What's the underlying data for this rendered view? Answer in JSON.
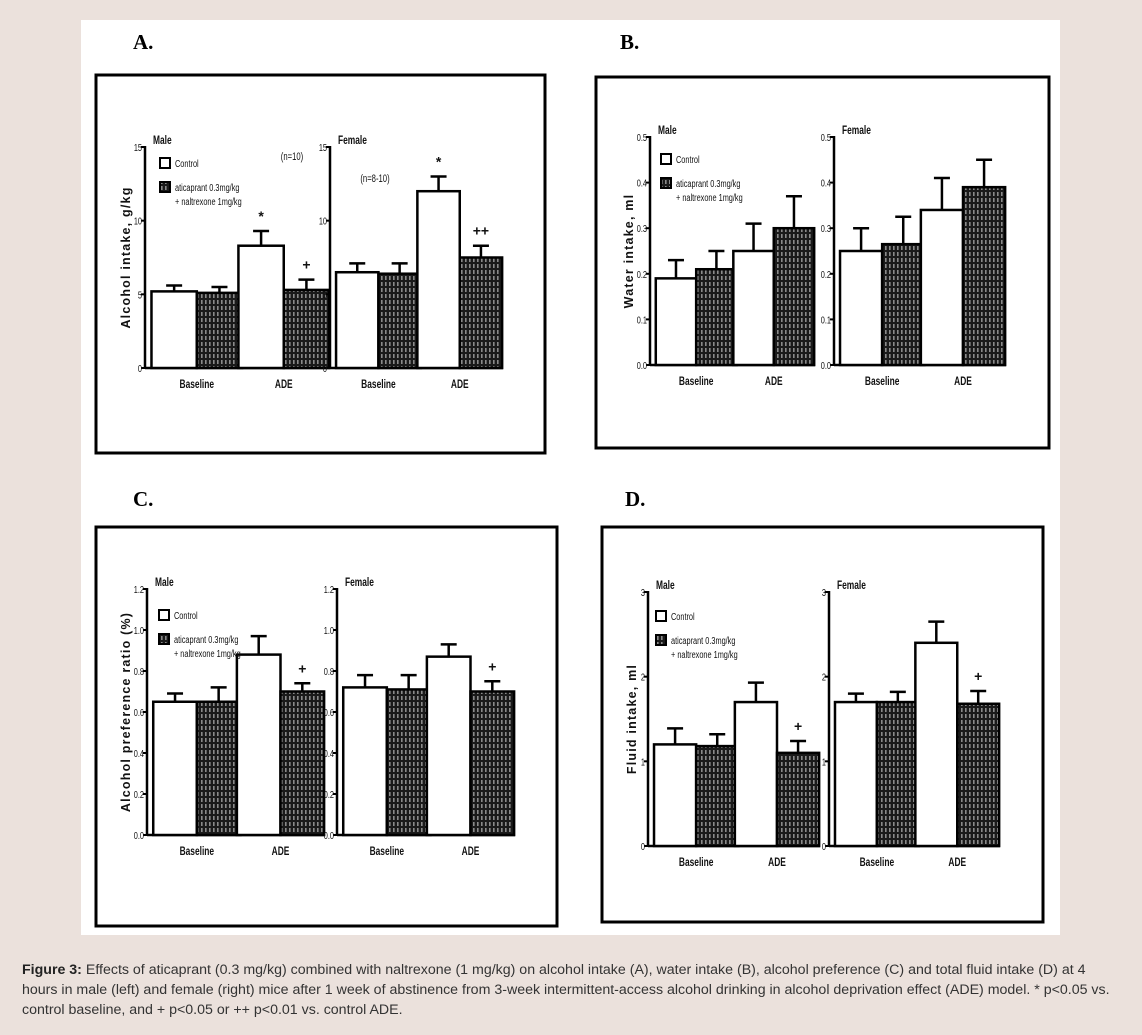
{
  "figure": {
    "caption_label": "Figure 3:",
    "caption_text": " Effects of aticaprant (0.3 mg/kg) combined with naltrexone (1 mg/kg) on alcohol intake (A), water intake (B), alcohol preference (C) and total fluid intake (D) at 4 hours in male (left) and female (right) mice after 1 week of abstinence from 3-week intermittent-access alcohol drinking in alcohol deprivation effect (ADE) model. * p<0.05 vs. control baseline, and + p<0.05 or ++ p<0.01 vs. control ADE.",
    "colors": {
      "page_bg": "#ebe1dc",
      "figure_bg": "#ffffff",
      "ink": "#000000",
      "hatch_fill": "#1a1a1a",
      "hatch_marks": "#8a8a8a"
    }
  },
  "chart_data": [
    {
      "panel": "A.",
      "type": "bar",
      "ylabel": "Alcohol intake, g/kg",
      "ylim": [
        0,
        15
      ],
      "yticks": [
        "0",
        "5",
        "10",
        "15"
      ],
      "categories": [
        "Baseline",
        "ADE"
      ],
      "legend": {
        "entries": [
          "Control",
          "aticaprant 0.3mg/kg",
          "+ naltrexone 1mg/kg"
        ],
        "placement": "top-left (male subplot)"
      },
      "subplots": [
        {
          "title": "Male",
          "annotation": "(n=10)",
          "series": [
            {
              "name": "Control",
              "values": [
                5.2,
                8.3
              ],
              "errors": [
                0.4,
                1.0
              ],
              "markers": [
                "",
                "*"
              ]
            },
            {
              "name": "aticaprant 0.3mg/kg + naltrexone 1mg/kg",
              "values": [
                5.1,
                5.3
              ],
              "errors": [
                0.4,
                0.7
              ],
              "markers": [
                "",
                "+"
              ]
            }
          ]
        },
        {
          "title": "Female",
          "annotation": "(n=8-10)",
          "series": [
            {
              "name": "Control",
              "values": [
                6.5,
                12.0
              ],
              "errors": [
                0.6,
                1.0
              ],
              "markers": [
                "",
                "*"
              ]
            },
            {
              "name": "aticaprant 0.3mg/kg + naltrexone 1mg/kg",
              "values": [
                6.4,
                7.5
              ],
              "errors": [
                0.7,
                0.8
              ],
              "markers": [
                "",
                "++"
              ]
            }
          ]
        }
      ]
    },
    {
      "panel": "B.",
      "type": "bar",
      "ylabel": "Water intake, ml",
      "ylim": [
        0,
        0.5
      ],
      "yticks": [
        "0.0",
        "0.1",
        "0.2",
        "0.3",
        "0.4",
        "0.5"
      ],
      "categories": [
        "Baseline",
        "ADE"
      ],
      "legend": {
        "entries": [
          "Control",
          "aticaprant 0.3mg/kg",
          "+ naltrexone 1mg/kg"
        ],
        "placement": "top-left (male subplot)"
      },
      "subplots": [
        {
          "title": "Male",
          "annotation": "",
          "series": [
            {
              "name": "Control",
              "values": [
                0.19,
                0.25
              ],
              "errors": [
                0.04,
                0.06
              ],
              "markers": [
                "",
                ""
              ]
            },
            {
              "name": "aticaprant 0.3mg/kg + naltrexone 1mg/kg",
              "values": [
                0.21,
                0.3
              ],
              "errors": [
                0.04,
                0.07
              ],
              "markers": [
                "",
                ""
              ]
            }
          ]
        },
        {
          "title": "Female",
          "annotation": "",
          "series": [
            {
              "name": "Control",
              "values": [
                0.25,
                0.34
              ],
              "errors": [
                0.05,
                0.07
              ],
              "markers": [
                "",
                ""
              ]
            },
            {
              "name": "aticaprant 0.3mg/kg + naltrexone 1mg/kg",
              "values": [
                0.265,
                0.39
              ],
              "errors": [
                0.06,
                0.06
              ],
              "markers": [
                "",
                ""
              ]
            }
          ]
        }
      ]
    },
    {
      "panel": "C.",
      "type": "bar",
      "ylabel": "Alcohol preference ratio (%)",
      "ylim": [
        0,
        1.2
      ],
      "yticks": [
        "0.0",
        "0.2",
        "0.4",
        "0.6",
        "0.8",
        "1.0",
        "1.2"
      ],
      "categories": [
        "Baseline",
        "ADE"
      ],
      "legend": {
        "entries": [
          "Control",
          "aticaprant 0.3mg/kg",
          "+ naltrexone 1mg/kg"
        ],
        "placement": "top-left (male subplot)"
      },
      "subplots": [
        {
          "title": "Male",
          "annotation": "",
          "series": [
            {
              "name": "Control",
              "values": [
                0.65,
                0.88
              ],
              "errors": [
                0.04,
                0.09
              ],
              "markers": [
                "",
                ""
              ]
            },
            {
              "name": "aticaprant 0.3mg/kg + naltrexone 1mg/kg",
              "values": [
                0.65,
                0.7
              ],
              "errors": [
                0.07,
                0.04
              ],
              "markers": [
                "",
                "+"
              ]
            }
          ]
        },
        {
          "title": "Female",
          "annotation": "",
          "series": [
            {
              "name": "Control",
              "values": [
                0.72,
                0.87
              ],
              "errors": [
                0.06,
                0.06
              ],
              "markers": [
                "",
                ""
              ]
            },
            {
              "name": "aticaprant 0.3mg/kg + naltrexone 1mg/kg",
              "values": [
                0.71,
                0.7
              ],
              "errors": [
                0.07,
                0.05
              ],
              "markers": [
                "",
                "+"
              ]
            }
          ]
        }
      ]
    },
    {
      "panel": "D.",
      "type": "bar",
      "ylabel": "Fluid intake, ml",
      "ylim": [
        0,
        3
      ],
      "yticks": [
        "0",
        "1",
        "2",
        "3"
      ],
      "categories": [
        "Baseline",
        "ADE"
      ],
      "legend": {
        "entries": [
          "Control",
          "aticaprant 0.3mg/kg",
          "+ naltrexone 1mg/kg"
        ],
        "placement": "top-left (male subplot)"
      },
      "subplots": [
        {
          "title": "Male",
          "annotation": "",
          "series": [
            {
              "name": "Control",
              "values": [
                1.2,
                1.7
              ],
              "errors": [
                0.19,
                0.23
              ],
              "markers": [
                "",
                ""
              ]
            },
            {
              "name": "aticaprant 0.3mg/kg + naltrexone 1mg/kg",
              "values": [
                1.18,
                1.1
              ],
              "errors": [
                0.14,
                0.14
              ],
              "markers": [
                "",
                "+"
              ]
            }
          ]
        },
        {
          "title": "Female",
          "annotation": "",
          "series": [
            {
              "name": "Control",
              "values": [
                1.7,
                2.4
              ],
              "errors": [
                0.1,
                0.25
              ],
              "markers": [
                "",
                ""
              ]
            },
            {
              "name": "aticaprant 0.3mg/kg + naltrexone 1mg/kg",
              "values": [
                1.7,
                1.68
              ],
              "errors": [
                0.12,
                0.15
              ],
              "markers": [
                "",
                "+"
              ]
            }
          ]
        }
      ]
    }
  ]
}
